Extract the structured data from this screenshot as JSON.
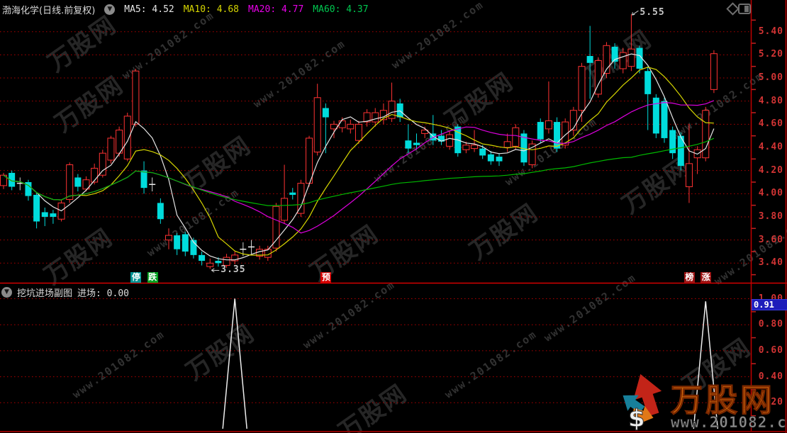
{
  "header": {
    "title": "渤海化学(日线.前复权)",
    "collapse_icon": "chevron-down-icon",
    "mas": [
      {
        "label": "MA5: 4.52",
        "color": "#e6e6e6"
      },
      {
        "label": "MA10: 4.68",
        "color": "#d6d600"
      },
      {
        "label": "MA20: 4.77",
        "color": "#e800e8"
      },
      {
        "label": "MA60: 4.37",
        "color": "#00c850"
      }
    ],
    "right_icons": [
      "diamond-icon",
      "layout-icon"
    ]
  },
  "chart_data": [
    {
      "type": "candlestick",
      "title": "渤海化学(日线.前复权)",
      "axis": {
        "ticks": [
          "5.40",
          "5.20",
          "5.00",
          "4.80",
          "4.60",
          "4.40",
          "4.20",
          "4.00",
          "3.80",
          "3.60",
          "3.40"
        ],
        "color": "#d23434",
        "grid": "dotted-red"
      },
      "up_color": "#ff3232",
      "down_color": "#00dcdc",
      "mas": [
        {
          "name": "MA5",
          "period": 5,
          "color": "#e6e6e6"
        },
        {
          "name": "MA10",
          "period": 10,
          "color": "#d6d600"
        },
        {
          "name": "MA20",
          "period": 20,
          "color": "#dd00dd"
        },
        {
          "name": "MA60",
          "period": 60,
          "color": "#00b800"
        }
      ],
      "annotations": {
        "peak": {
          "label": "5.55",
          "bar": 76
        },
        "trough": {
          "label": "3.35",
          "bar": 25
        }
      },
      "badges": [
        {
          "label": "停",
          "bg": "#009494",
          "bar": 16
        },
        {
          "label": "跌",
          "bg": "#00a020",
          "bar": 18
        },
        {
          "label": "预",
          "bg": "#d40000",
          "bar": 39
        },
        {
          "label": "榜",
          "bg": "#9c1414",
          "bar": 83
        },
        {
          "label": "涨",
          "bg": "#9c1414",
          "bar": 85
        }
      ],
      "candles": [
        {
          "o": 4.07,
          "c": 4.16,
          "l": 4.04,
          "h": 4.18
        },
        {
          "o": 4.18,
          "c": 4.06,
          "l": 4.03,
          "h": 4.2
        },
        {
          "o": 4.09,
          "c": 4.09,
          "l": 4.03,
          "h": 4.14
        },
        {
          "o": 4.1,
          "c": 3.98,
          "l": 3.94,
          "h": 4.12
        },
        {
          "o": 3.99,
          "c": 3.76,
          "l": 3.7,
          "h": 4.01
        },
        {
          "o": 3.84,
          "c": 3.8,
          "l": 3.72,
          "h": 3.88
        },
        {
          "o": 3.83,
          "c": 3.8,
          "l": 3.74,
          "h": 3.86
        },
        {
          "o": 3.78,
          "c": 3.92,
          "l": 3.76,
          "h": 3.95
        },
        {
          "o": 3.95,
          "c": 4.25,
          "l": 3.92,
          "h": 4.27
        },
        {
          "o": 4.14,
          "c": 4.06,
          "l": 4.02,
          "h": 4.17
        },
        {
          "o": 4.04,
          "c": 4.12,
          "l": 4.02,
          "h": 4.15
        },
        {
          "o": 4.1,
          "c": 4.22,
          "l": 4.08,
          "h": 4.26
        },
        {
          "o": 4.16,
          "c": 4.35,
          "l": 4.14,
          "h": 4.38
        },
        {
          "o": 4.29,
          "c": 4.48,
          "l": 4.26,
          "h": 4.5
        },
        {
          "o": 4.35,
          "c": 4.55,
          "l": 4.32,
          "h": 4.58
        },
        {
          "o": 4.3,
          "c": 4.67,
          "l": 4.28,
          "h": 4.7
        },
        {
          "o": 4.6,
          "c": 5.06,
          "l": 4.58,
          "h": 5.08
        },
        {
          "o": 4.2,
          "c": 4.05,
          "l": 4.0,
          "h": 4.28
        },
        {
          "o": 4.08,
          "c": 4.08,
          "l": 4.02,
          "h": 4.14
        },
        {
          "o": 3.92,
          "c": 3.78,
          "l": 3.74,
          "h": 3.96
        },
        {
          "o": 3.6,
          "c": 3.64,
          "l": 3.52,
          "h": 3.7
        },
        {
          "o": 3.64,
          "c": 3.52,
          "l": 3.47,
          "h": 3.66
        },
        {
          "o": 3.65,
          "c": 3.5,
          "l": 3.46,
          "h": 3.67
        },
        {
          "o": 3.6,
          "c": 3.47,
          "l": 3.44,
          "h": 3.62
        },
        {
          "o": 3.47,
          "c": 3.42,
          "l": 3.38,
          "h": 3.5
        },
        {
          "o": 3.37,
          "c": 3.4,
          "l": 3.35,
          "h": 3.44
        },
        {
          "o": 3.42,
          "c": 3.4,
          "l": 3.37,
          "h": 3.45
        },
        {
          "o": 3.38,
          "c": 3.45,
          "l": 3.36,
          "h": 3.48
        },
        {
          "o": 3.42,
          "c": 3.47,
          "l": 3.39,
          "h": 3.5
        },
        {
          "o": 3.52,
          "c": 3.52,
          "l": 3.46,
          "h": 3.58
        },
        {
          "o": 3.54,
          "c": 3.54,
          "l": 3.48,
          "h": 3.6
        },
        {
          "o": 3.46,
          "c": 3.52,
          "l": 3.43,
          "h": 3.55
        },
        {
          "o": 3.45,
          "c": 3.52,
          "l": 3.42,
          "h": 3.55
        },
        {
          "o": 3.53,
          "c": 3.89,
          "l": 3.5,
          "h": 3.92
        },
        {
          "o": 3.77,
          "c": 3.96,
          "l": 3.74,
          "h": 4.25
        },
        {
          "o": 4.01,
          "c": 3.99,
          "l": 3.95,
          "h": 4.05
        },
        {
          "o": 3.83,
          "c": 4.09,
          "l": 3.8,
          "h": 4.12
        },
        {
          "o": 4.09,
          "c": 4.48,
          "l": 4.06,
          "h": 4.5
        },
        {
          "o": 4.36,
          "c": 4.83,
          "l": 4.33,
          "h": 4.95
        },
        {
          "o": 4.74,
          "c": 4.66,
          "l": 4.35,
          "h": 4.78
        },
        {
          "o": 4.56,
          "c": 4.6,
          "l": 4.48,
          "h": 4.63
        },
        {
          "o": 4.57,
          "c": 4.63,
          "l": 4.53,
          "h": 4.66
        },
        {
          "o": 4.56,
          "c": 4.6,
          "l": 4.52,
          "h": 4.64
        },
        {
          "o": 4.46,
          "c": 4.6,
          "l": 4.43,
          "h": 4.63
        },
        {
          "o": 4.62,
          "c": 4.7,
          "l": 4.58,
          "h": 4.73
        },
        {
          "o": 4.62,
          "c": 4.7,
          "l": 4.58,
          "h": 4.74
        },
        {
          "o": 4.64,
          "c": 4.72,
          "l": 4.6,
          "h": 4.78
        },
        {
          "o": 4.65,
          "c": 4.8,
          "l": 4.62,
          "h": 4.96
        },
        {
          "o": 4.78,
          "c": 4.66,
          "l": 4.62,
          "h": 4.82
        },
        {
          "o": 4.46,
          "c": 4.39,
          "l": 4.35,
          "h": 4.6
        },
        {
          "o": 4.44,
          "c": 4.42,
          "l": 4.38,
          "h": 4.52
        },
        {
          "o": 4.52,
          "c": 4.55,
          "l": 4.48,
          "h": 4.58
        },
        {
          "o": 4.52,
          "c": 4.46,
          "l": 4.42,
          "h": 4.68
        },
        {
          "o": 4.5,
          "c": 4.45,
          "l": 4.42,
          "h": 4.55
        },
        {
          "o": 4.41,
          "c": 4.51,
          "l": 4.38,
          "h": 4.54
        },
        {
          "o": 4.58,
          "c": 4.35,
          "l": 4.32,
          "h": 4.6
        },
        {
          "o": 4.38,
          "c": 4.42,
          "l": 4.35,
          "h": 4.45
        },
        {
          "o": 4.39,
          "c": 4.42,
          "l": 4.36,
          "h": 4.55
        },
        {
          "o": 4.39,
          "c": 4.33,
          "l": 4.3,
          "h": 4.42
        },
        {
          "o": 4.34,
          "c": 4.28,
          "l": 4.25,
          "h": 4.37
        },
        {
          "o": 4.32,
          "c": 4.28,
          "l": 4.24,
          "h": 4.35
        },
        {
          "o": 4.4,
          "c": 4.45,
          "l": 4.36,
          "h": 4.52
        },
        {
          "o": 4.41,
          "c": 4.57,
          "l": 4.38,
          "h": 4.6
        },
        {
          "o": 4.52,
          "c": 4.27,
          "l": 4.24,
          "h": 4.55
        },
        {
          "o": 4.25,
          "c": 4.43,
          "l": 4.22,
          "h": 4.46
        },
        {
          "o": 4.62,
          "c": 4.47,
          "l": 4.44,
          "h": 4.65
        },
        {
          "o": 4.56,
          "c": 4.63,
          "l": 4.52,
          "h": 4.97
        },
        {
          "o": 4.62,
          "c": 4.39,
          "l": 4.36,
          "h": 4.66
        },
        {
          "o": 4.42,
          "c": 4.62,
          "l": 4.39,
          "h": 4.65
        },
        {
          "o": 4.55,
          "c": 4.72,
          "l": 4.5,
          "h": 4.75
        },
        {
          "o": 4.72,
          "c": 5.1,
          "l": 4.62,
          "h": 5.13
        },
        {
          "o": 5.19,
          "c": 5.13,
          "l": 4.82,
          "h": 5.45
        },
        {
          "o": 4.86,
          "c": 5.15,
          "l": 4.83,
          "h": 5.18
        },
        {
          "o": 5.04,
          "c": 5.28,
          "l": 5.0,
          "h": 5.31
        },
        {
          "o": 5.27,
          "c": 5.14,
          "l": 5.08,
          "h": 5.3
        },
        {
          "o": 5.08,
          "c": 5.22,
          "l": 5.04,
          "h": 5.26
        },
        {
          "o": 5.1,
          "c": 5.25,
          "l": 5.06,
          "h": 5.55
        },
        {
          "o": 5.26,
          "c": 5.08,
          "l": 5.04,
          "h": 5.28
        },
        {
          "o": 5.06,
          "c": 4.86,
          "l": 4.55,
          "h": 5.1
        },
        {
          "o": 4.83,
          "c": 4.52,
          "l": 4.48,
          "h": 4.86
        },
        {
          "o": 4.8,
          "c": 4.48,
          "l": 4.44,
          "h": 4.83
        },
        {
          "o": 4.55,
          "c": 4.35,
          "l": 4.3,
          "h": 4.58
        },
        {
          "o": 4.5,
          "c": 4.24,
          "l": 4.2,
          "h": 4.53
        },
        {
          "o": 4.06,
          "c": 4.26,
          "l": 3.92,
          "h": 4.6
        },
        {
          "o": 4.31,
          "c": 4.38,
          "l": 4.17,
          "h": 4.41
        },
        {
          "o": 4.31,
          "c": 4.72,
          "l": 4.28,
          "h": 4.75
        },
        {
          "o": 4.9,
          "c": 5.21,
          "l": 4.87,
          "h": 5.24
        }
      ]
    },
    {
      "type": "line",
      "title": "挖坑进场副图",
      "value_label": "进场: 0.00",
      "current_tag": "0.91",
      "line_color": "#ededed",
      "axis": {
        "ticks": [
          "1.00",
          "0.80",
          "0.60",
          "0.40",
          "0.20"
        ],
        "color": "#d23434",
        "ylim": [
          0,
          1.0
        ]
      },
      "signals": [
        {
          "bar": 28,
          "peak": 1.0
        },
        {
          "bar": 85,
          "peak": 0.98
        }
      ]
    }
  ],
  "watermark": {
    "brand": "万股网",
    "url": "www.201082.com"
  },
  "logo": {
    "brand": "万股网",
    "url": "www.201082.com",
    "dollar": "$"
  }
}
